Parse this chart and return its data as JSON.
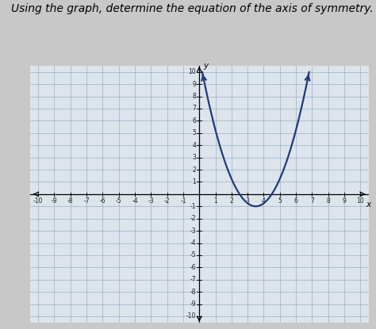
{
  "title": "Using the graph, determine the equation of the axis of symmetry.",
  "title_fontsize": 10.0,
  "background_color": "#c8c8c8",
  "plot_bg_color": "#dde4ec",
  "grid_color": "#9aafc5",
  "curve_color": "#1e3a7a",
  "curve_linewidth": 1.6,
  "xmin": -10,
  "xmax": 10,
  "ymin": -10,
  "ymax": 10,
  "vertex_x": 3.5,
  "vertex_y": -1,
  "parabola_a": 1.0,
  "x_plot_start": 0.08,
  "x_plot_end": 7.42
}
